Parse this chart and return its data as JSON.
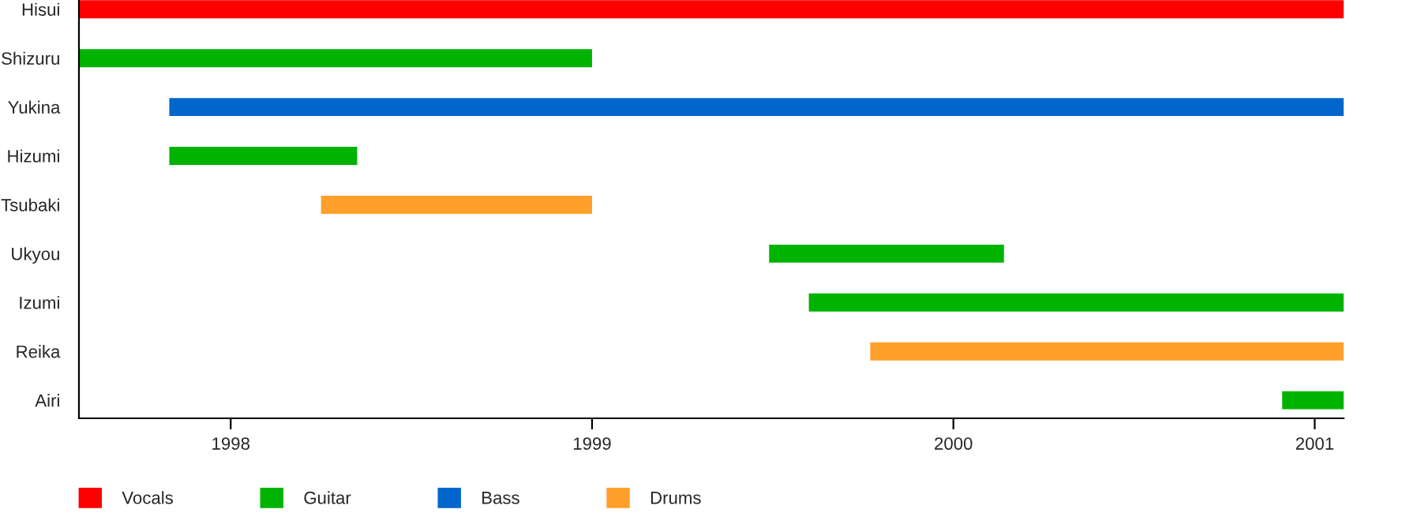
{
  "chart_data": {
    "type": "bar",
    "orientation": "horizontal",
    "categories": [
      "Hisui",
      "Shizuru",
      "Yukina",
      "Hizumi",
      "Tsubaki",
      "Ukyou",
      "Izumi",
      "Reika",
      "Airi"
    ],
    "series": [
      {
        "name": "Vocals",
        "color": "#ff0000",
        "values": [
          3.5,
          null,
          null,
          null,
          null,
          null,
          null,
          null,
          null
        ],
        "base": [
          1997.58,
          null,
          null,
          null,
          null,
          null,
          null,
          null,
          null
        ]
      },
      {
        "name": "Guitar",
        "color": "#00b300",
        "values": [
          null,
          1.42,
          null,
          0.52,
          null,
          0.65,
          1.48,
          null,
          0.17
        ],
        "base": [
          null,
          1997.58,
          null,
          1997.83,
          null,
          1999.49,
          1999.6,
          null,
          2000.91
        ]
      },
      {
        "name": "Bass",
        "color": "#0066cc",
        "values": [
          null,
          null,
          3.25,
          null,
          null,
          null,
          null,
          null,
          null
        ],
        "base": [
          null,
          null,
          1997.83,
          null,
          null,
          null,
          null,
          null,
          null
        ]
      },
      {
        "name": "Drums",
        "color": "#ffa02a",
        "values": [
          null,
          null,
          null,
          null,
          0.75,
          null,
          null,
          1.31,
          null
        ],
        "base": [
          null,
          null,
          null,
          null,
          1998.25,
          null,
          null,
          1999.77,
          null
        ]
      }
    ],
    "xlim": [
      1997.58,
      2001.08
    ],
    "xticks": [
      1998,
      1999,
      2000,
      2001
    ],
    "grid": false,
    "legend": "bottom left"
  }
}
